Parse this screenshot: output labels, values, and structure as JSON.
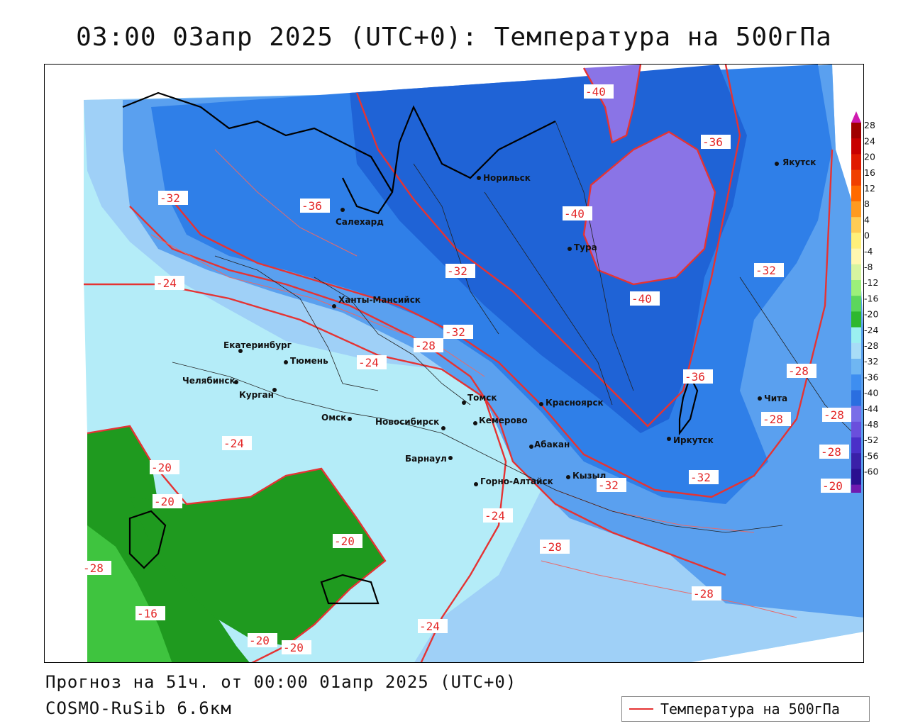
{
  "title": "03:00 03апр 2025 (UTC+0): Температура на 500гПа",
  "footer": {
    "forecast": "Прогноз на 51ч. от 00:00 01апр 2025 (UTC+0)",
    "model": "COSMO-RuSib 6.6км"
  },
  "legend": {
    "label": "Температура на 500гПа",
    "line_color": "#e53333"
  },
  "colors": {
    "minus40": "#8a74e6",
    "minus36": "#1f63d6",
    "minus32": "#2f7fe8",
    "minus28": "#5aa0ef",
    "minus24": "#9fd0f7",
    "minus20": "#b4ecf8",
    "minus16": "#1f9a1f",
    "minus12": "#3fc43f",
    "contour": "#e53333",
    "city": "#111111"
  },
  "scale": {
    "labels": [
      "28",
      "24",
      "20",
      "16",
      "12",
      "8",
      "4",
      "0",
      "-4",
      "-8",
      "-12",
      "-16",
      "-20",
      "-24",
      "-28",
      "-32",
      "-36",
      "-40",
      "-44",
      "-48",
      "-52",
      "-56",
      "-60"
    ],
    "colors": [
      "#a00000",
      "#c80000",
      "#e01a00",
      "#f04000",
      "#ff6a00",
      "#ff9a20",
      "#ffcc55",
      "#fff07a",
      "#fff7b0",
      "#d6f5a0",
      "#9cf07a",
      "#5cd65c",
      "#2eb82e",
      "#9bf0f0",
      "#a8dcf7",
      "#6fb6f2",
      "#3e8ef0",
      "#2a6ee0",
      "#7a6ee8",
      "#6a4fdc",
      "#4a30c8",
      "#3a20a8",
      "#2a1090",
      "#701ab0"
    ]
  },
  "cities": [
    "Якутск",
    "Норильск",
    "Салехард",
    "Тура",
    "Ханты-Мансийск",
    "Екатеринбург",
    "Тюмень",
    "Челябинск",
    "Курган",
    "Омск",
    "Новосибирск",
    "Томск",
    "Кемерово",
    "Красноярск",
    "Абакан",
    "Барнаул",
    "Горно-Алтайск",
    "Кызыл",
    "Иркутск",
    "Чита"
  ],
  "isolines": [
    "-40",
    "-40",
    "-40",
    "-36",
    "-36",
    "-36",
    "-32",
    "-32",
    "-32",
    "-32",
    "-32",
    "-32",
    "-28",
    "-28",
    "-28",
    "-28",
    "-28",
    "-28",
    "-28",
    "-28",
    "-24",
    "-24",
    "-24",
    "-24",
    "-24",
    "-20",
    "-20",
    "-20",
    "-20",
    "-20",
    "-16",
    "-20"
  ]
}
